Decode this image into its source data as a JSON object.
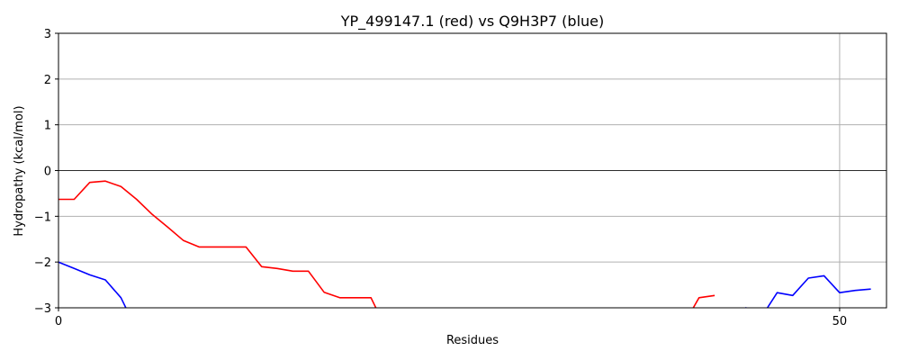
{
  "chart_data": {
    "type": "line",
    "title": "YP_499147.1 (red) vs Q9H3P7 (blue)",
    "xlabel": "Residues",
    "ylabel": "Hydropathy (kcal/mol)",
    "xlim": [
      0,
      53
    ],
    "ylim": [
      -3,
      3
    ],
    "x_ticks": [
      0,
      50
    ],
    "y_ticks": [
      -3,
      -2,
      -1,
      0,
      1,
      2,
      3
    ],
    "grid": true,
    "zero_line": true,
    "series": [
      {
        "color": "#ff0000",
        "points": [
          [
            0,
            -0.63
          ],
          [
            1,
            -0.63
          ],
          [
            2,
            -0.26
          ],
          [
            3,
            -0.23
          ],
          [
            4,
            -0.35
          ],
          [
            5,
            -0.63
          ],
          [
            6,
            -0.96
          ],
          [
            7,
            -1.24
          ],
          [
            8,
            -1.53
          ],
          [
            9,
            -1.67
          ],
          [
            10,
            -1.67
          ],
          [
            11,
            -1.67
          ],
          [
            12,
            -1.67
          ],
          [
            13,
            -2.1
          ],
          [
            14,
            -2.14
          ],
          [
            15,
            -2.2
          ],
          [
            16,
            -2.2
          ],
          [
            17,
            -2.66
          ],
          [
            18,
            -2.78
          ],
          [
            19,
            -2.78
          ],
          [
            20,
            -2.78
          ],
          [
            20.6,
            -3.2
          ],
          [
            40.3,
            -3.2
          ],
          [
            41,
            -2.78
          ],
          [
            42,
            -2.73
          ]
        ]
      },
      {
        "color": "#0000ff",
        "points": [
          [
            0,
            -2.0
          ],
          [
            1,
            -2.14
          ],
          [
            2,
            -2.28
          ],
          [
            3,
            -2.39
          ],
          [
            4,
            -2.78
          ],
          [
            4.6,
            -3.2
          ],
          [
            43.7,
            -3.2
          ],
          [
            44,
            -3.0
          ],
          [
            45,
            -3.2
          ],
          [
            46,
            -2.67
          ],
          [
            47,
            -2.73
          ],
          [
            48,
            -2.35
          ],
          [
            49,
            -2.3
          ],
          [
            50,
            -2.67
          ],
          [
            51,
            -2.62
          ],
          [
            52,
            -2.59
          ]
        ]
      }
    ]
  }
}
